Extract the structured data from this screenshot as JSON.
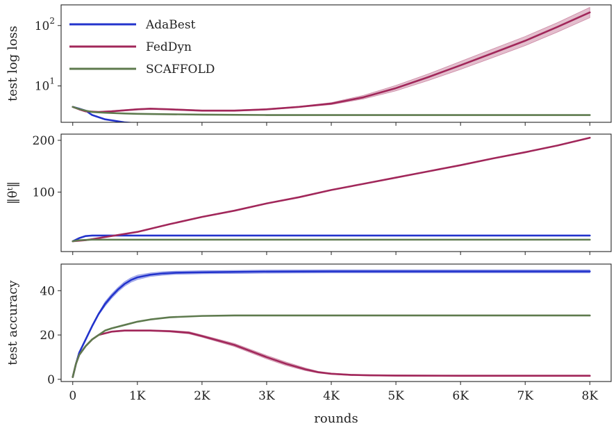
{
  "chart_data": [
    {
      "type": "line",
      "ylabel": "test log loss",
      "yscale": "log",
      "ylim": [
        2.5,
        220
      ],
      "yticks": [
        {
          "value": 10,
          "base": "10",
          "exp": "1"
        },
        {
          "value": 100,
          "base": "10",
          "exp": "2"
        }
      ],
      "xlim": [
        -180,
        8330
      ],
      "grid": false,
      "legend": {
        "placement": "top-left",
        "entries": [
          "AdaBest",
          "FedDyn",
          "SCAFFOLD"
        ]
      },
      "series": [
        {
          "name": "AdaBest",
          "color": "#2233cc",
          "x": [
            0,
            100,
            200,
            300,
            500,
            800,
            1000,
            1200,
            1300,
            2000,
            3000,
            4000,
            5000,
            6000,
            7000,
            8000
          ],
          "y": [
            4.5,
            4.2,
            3.9,
            3.3,
            2.8,
            2.5,
            2.4,
            2.35,
            2.4,
            2.35,
            2.3,
            2.3,
            2.3,
            2.3,
            2.3,
            2.3
          ]
        },
        {
          "name": "FedDyn",
          "color": "#a1275a",
          "x": [
            0,
            100,
            200,
            400,
            600,
            1000,
            1200,
            1500,
            2000,
            2500,
            3000,
            3500,
            4000,
            4500,
            5000,
            5500,
            6000,
            6500,
            7000,
            7500,
            8000
          ],
          "y": [
            4.5,
            4.1,
            3.8,
            3.7,
            3.8,
            4.1,
            4.2,
            4.1,
            3.9,
            3.9,
            4.1,
            4.5,
            5.1,
            6.5,
            9.2,
            14,
            22,
            35,
            56,
            95,
            165
          ],
          "band_low": [
            4.4,
            4.0,
            3.7,
            3.6,
            3.7,
            4.0,
            4.1,
            4.0,
            3.8,
            3.8,
            4.0,
            4.4,
            4.9,
            6.1,
            8.3,
            12.3,
            18.8,
            29.5,
            46.5,
            78,
            135
          ],
          "band_high": [
            4.6,
            4.2,
            3.9,
            3.8,
            3.9,
            4.2,
            4.3,
            4.2,
            4.0,
            4.0,
            4.2,
            4.6,
            5.3,
            7.0,
            10.2,
            15.8,
            25.5,
            41,
            66,
            112,
            200
          ]
        },
        {
          "name": "SCAFFOLD",
          "color": "#5e7a4e",
          "x": [
            0,
            100,
            200,
            300,
            500,
            800,
            1000,
            1500,
            2000,
            3000,
            4000,
            5000,
            6000,
            7000,
            8000
          ],
          "y": [
            4.5,
            4.15,
            3.9,
            3.7,
            3.6,
            3.5,
            3.45,
            3.4,
            3.35,
            3.3,
            3.3,
            3.3,
            3.3,
            3.3,
            3.3
          ]
        }
      ]
    },
    {
      "type": "line",
      "ylabel": "‖θᵗ‖",
      "ylim": [
        -15,
        212
      ],
      "yticks": [
        100,
        200
      ],
      "xlim": [
        -180,
        8330
      ],
      "grid": false,
      "series": [
        {
          "name": "AdaBest",
          "color": "#2233cc",
          "x": [
            0,
            100,
            200,
            300,
            500,
            1000,
            2000,
            4000,
            6000,
            8000
          ],
          "y": [
            5,
            11,
            15,
            16,
            16,
            16,
            16,
            16,
            16,
            16
          ]
        },
        {
          "name": "FedDyn",
          "color": "#a1275a",
          "x": [
            0,
            200,
            500,
            1000,
            1500,
            2000,
            2500,
            3000,
            3500,
            4000,
            4500,
            5000,
            5500,
            6000,
            6500,
            7000,
            7500,
            8000
          ],
          "y": [
            5,
            7,
            13,
            23,
            38,
            52,
            64,
            78,
            90,
            104,
            116,
            128,
            140,
            152,
            165,
            177,
            190,
            205
          ]
        },
        {
          "name": "SCAFFOLD",
          "color": "#5e7a4e",
          "x": [
            0,
            100,
            300,
            500,
            1000,
            2000,
            4000,
            6000,
            8000
          ],
          "y": [
            5,
            7,
            8,
            8,
            8,
            8,
            8,
            8,
            8
          ]
        }
      ]
    },
    {
      "type": "line",
      "xlabel": "rounds",
      "ylabel": "test accuracy",
      "ylim": [
        -1,
        52
      ],
      "yticks": [
        0,
        20,
        40
      ],
      "xlim": [
        -180,
        8330
      ],
      "xticks": [
        {
          "value": 0,
          "label": "0"
        },
        {
          "value": 1000,
          "label": "1K"
        },
        {
          "value": 2000,
          "label": "2K"
        },
        {
          "value": 3000,
          "label": "3K"
        },
        {
          "value": 4000,
          "label": "4K"
        },
        {
          "value": 5000,
          "label": "5K"
        },
        {
          "value": 6000,
          "label": "6K"
        },
        {
          "value": 7000,
          "label": "7K"
        },
        {
          "value": 8000,
          "label": "8K"
        }
      ],
      "grid": false,
      "series": [
        {
          "name": "AdaBest",
          "color": "#2233cc",
          "x": [
            0,
            50,
            100,
            200,
            300,
            400,
            500,
            600,
            700,
            800,
            900,
            1000,
            1200,
            1400,
            1600,
            2000,
            3000,
            4000,
            5000,
            6000,
            7000,
            8000
          ],
          "y": [
            1,
            7,
            12,
            18,
            24,
            29.5,
            34,
            37.5,
            40.5,
            43,
            44.8,
            46,
            47.2,
            47.8,
            48.1,
            48.3,
            48.6,
            48.7,
            48.7,
            48.7,
            48.7,
            48.7
          ],
          "band_low": [
            1,
            6.5,
            11.5,
            17.5,
            23.5,
            29,
            33,
            36.5,
            39.5,
            42,
            43.8,
            45,
            46.4,
            47,
            47.4,
            47.6,
            47.9,
            48,
            48,
            48,
            48,
            48
          ],
          "band_high": [
            1,
            7.5,
            12.5,
            18.5,
            24.5,
            30,
            35,
            38.5,
            41.5,
            44,
            45.8,
            47,
            48,
            48.6,
            48.8,
            49,
            49.3,
            49.4,
            49.4,
            49.4,
            49.4,
            49.4
          ]
        },
        {
          "name": "FedDyn",
          "color": "#a1275a",
          "x": [
            0,
            50,
            100,
            200,
            300,
            400,
            600,
            800,
            1000,
            1200,
            1500,
            1800,
            2000,
            2500,
            3000,
            3300,
            3600,
            3800,
            4000,
            4300,
            4600,
            5000,
            6000,
            7000,
            8000
          ],
          "y": [
            1,
            7,
            11,
            15,
            18,
            20,
            21.5,
            22,
            22,
            22,
            21.7,
            21,
            19.5,
            15.5,
            10,
            7,
            4.5,
            3.2,
            2.5,
            2,
            1.8,
            1.7,
            1.6,
            1.6,
            1.6
          ],
          "band_low": [
            1,
            6.8,
            10.8,
            14.8,
            17.8,
            19.8,
            21.2,
            21.7,
            21.7,
            21.7,
            21.3,
            20.5,
            19,
            14.8,
            9.2,
            6.2,
            3.9,
            2.8,
            2.2,
            1.7,
            1.5,
            1.4,
            1.3,
            1.3,
            1.3
          ],
          "band_high": [
            1,
            7.2,
            11.2,
            15.2,
            18.2,
            20.2,
            21.8,
            22.3,
            22.3,
            22.3,
            22.1,
            21.5,
            20,
            16.2,
            10.8,
            7.8,
            5.1,
            3.6,
            2.8,
            2.3,
            2.1,
            2,
            1.9,
            1.9,
            1.9
          ]
        },
        {
          "name": "SCAFFOLD",
          "color": "#5e7a4e",
          "x": [
            0,
            50,
            100,
            200,
            300,
            400,
            500,
            600,
            800,
            1000,
            1200,
            1500,
            2000,
            2500,
            3000,
            4000,
            5000,
            6000,
            7000,
            8000
          ],
          "y": [
            1,
            7,
            11,
            15,
            18,
            20,
            22,
            23,
            24.5,
            26,
            27,
            28,
            28.6,
            28.8,
            28.8,
            28.8,
            28.8,
            28.8,
            28.8,
            28.8
          ]
        }
      ]
    }
  ]
}
